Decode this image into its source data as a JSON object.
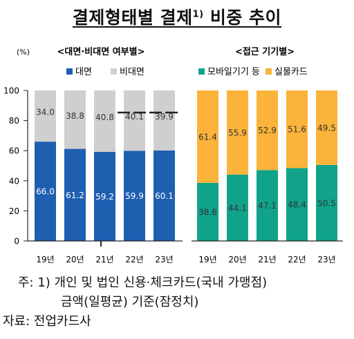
{
  "title": "결제형태별 결제",
  "title_sup": "1)",
  "title_tail": " 비중 추이",
  "colors": {
    "face": "#1f5fb0",
    "nonface": "#cfcfcf",
    "mobile": "#10a38a",
    "card": "#fbb33a"
  },
  "chart_data": [
    {
      "type": "bar",
      "stacked": true,
      "title": "<대면·비대면 여부별>",
      "unit_label": "(%)",
      "categories": [
        "19년",
        "20년",
        "21년",
        "22년",
        "23년"
      ],
      "series": [
        {
          "name": "대면",
          "values": [
            66.0,
            61.2,
            59.2,
            59.9,
            60.1
          ]
        },
        {
          "name": "비대면",
          "values": [
            34.0,
            38.8,
            40.8,
            40.1,
            39.9
          ]
        }
      ],
      "ylim": [
        0,
        100
      ],
      "yticks": [
        "0",
        "20",
        "40",
        "60",
        "80",
        "100"
      ],
      "legend_position": "top",
      "grid": false
    },
    {
      "type": "bar",
      "stacked": true,
      "title": "<접근 기기별>",
      "categories": [
        "19년",
        "20년",
        "21년",
        "22년",
        "23년"
      ],
      "series": [
        {
          "name": "모바일기기 등",
          "values": [
            38.6,
            44.1,
            47.1,
            48.4,
            50.5
          ]
        },
        {
          "name": "실물카드",
          "values": [
            61.4,
            55.9,
            52.9,
            51.6,
            49.5
          ]
        }
      ],
      "ylim": [
        0,
        100
      ],
      "legend_position": "top",
      "grid": false
    }
  ],
  "notes": {
    "note1_line1": "주:  1)  개인 및 법인 신용·체크카드(국내 가맹점)",
    "note1_line2": "금액(일평균) 기준(잠정치)",
    "source": "자료: 전업카드사"
  }
}
